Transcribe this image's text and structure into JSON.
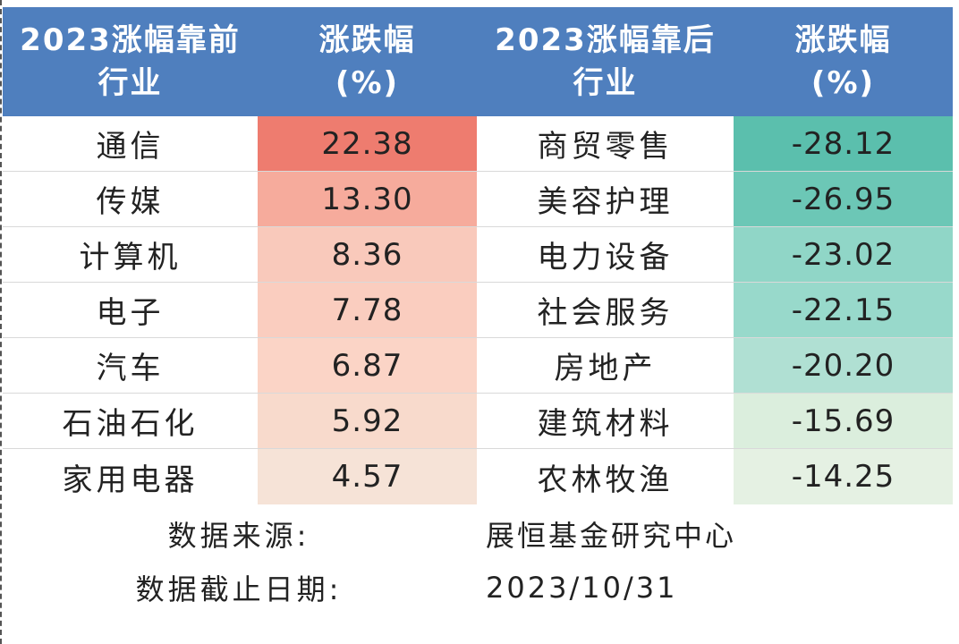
{
  "header": {
    "col1_line1": "2023涨幅靠前",
    "col1_line2": "行业",
    "col2_line1": "涨跌幅",
    "col2_line2": "(%)",
    "col3_line1": "2023涨幅靠后",
    "col3_line2": "行业",
    "col4_line1": "涨跌幅",
    "col4_line2": "(%)"
  },
  "colors": {
    "header_bg": "#4f7fbe",
    "top_scale": [
      "#ee7c6f",
      "#f6ab9c",
      "#f9c9bb",
      "#facdbf",
      "#fbd4c6",
      "#f8dacc",
      "#f6e3d7"
    ],
    "bottom_scale": [
      "#5bbfad",
      "#6cc7b6",
      "#90d6c7",
      "#98d9cb",
      "#b0e0d3",
      "#dbeedd",
      "#e5f1e3"
    ]
  },
  "rows": [
    {
      "top_name": "通信",
      "top_value": "22.38",
      "bottom_name": "商贸零售",
      "bottom_value": "-28.12"
    },
    {
      "top_name": "传媒",
      "top_value": "13.30",
      "bottom_name": "美容护理",
      "bottom_value": "-26.95"
    },
    {
      "top_name": "计算机",
      "top_value": "8.36",
      "bottom_name": "电力设备",
      "bottom_value": "-23.02"
    },
    {
      "top_name": "电子",
      "top_value": "7.78",
      "bottom_name": "社会服务",
      "bottom_value": "-22.15"
    },
    {
      "top_name": "汽车",
      "top_value": "6.87",
      "bottom_name": "房地产",
      "bottom_value": "-20.20"
    },
    {
      "top_name": "石油石化",
      "top_value": "5.92",
      "bottom_name": "建筑材料",
      "bottom_value": "-15.69"
    },
    {
      "top_name": "家用电器",
      "top_value": "4.57",
      "bottom_name": "农林牧渔",
      "bottom_value": "-14.25"
    }
  ],
  "footer": {
    "source_label": "数据来源:",
    "source_value": "展恒基金研究中心",
    "cutoff_label": "数据截止日期:",
    "cutoff_value": "2023/10/31"
  }
}
